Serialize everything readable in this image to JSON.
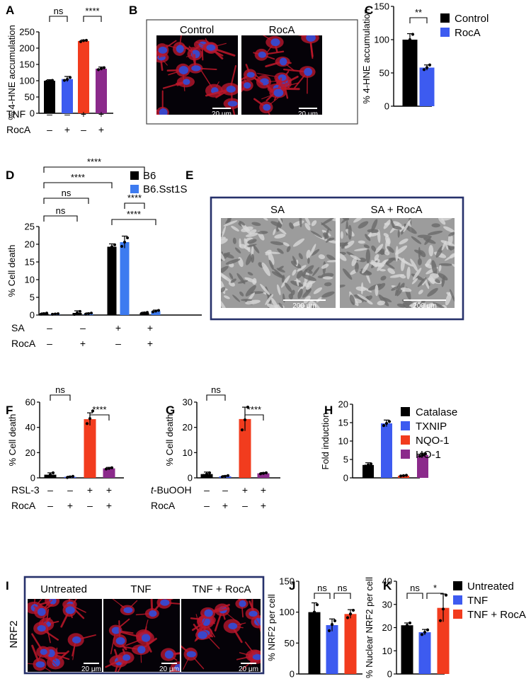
{
  "panel_labels": [
    "A",
    "B",
    "C",
    "D",
    "E",
    "F",
    "G",
    "H",
    "I",
    "J",
    "K"
  ],
  "legends": {
    "C": [
      {
        "label": "Control",
        "color": "#000000"
      },
      {
        "label": "RocA",
        "color": "#3d5bf0"
      }
    ],
    "D": [
      {
        "label": "B6",
        "color": "#000000"
      },
      {
        "label": "B6.Sst1S",
        "color": "#3d7bf0"
      }
    ],
    "H": [
      {
        "label": "Catalase",
        "color": "#000000"
      },
      {
        "label": "TXNIP",
        "color": "#3d5bf0"
      },
      {
        "label": "NQO-1",
        "color": "#f23c1e"
      },
      {
        "label": "HO-1",
        "color": "#8b2a8b"
      }
    ],
    "K": [
      {
        "label": "Untreated",
        "color": "#000000"
      },
      {
        "label": "TNF",
        "color": "#3d5bf0"
      },
      {
        "label": "TNF + RocA",
        "color": "#f23c1e"
      }
    ]
  },
  "conditions": {
    "A": [
      {
        "label": "TNF",
        "signs": [
          "–",
          "–",
          "+",
          "+"
        ]
      },
      {
        "label": "RocA",
        "signs": [
          "–",
          "+",
          "–",
          "+"
        ]
      }
    ],
    "D": [
      {
        "label": "SA",
        "signs": [
          "–",
          "–",
          "+",
          "+"
        ]
      },
      {
        "label": "RocA",
        "signs": [
          "–",
          "+",
          "–",
          "+"
        ]
      }
    ],
    "F": [
      {
        "label": "RSL-3",
        "signs": [
          "–",
          "–",
          "+",
          "+"
        ]
      },
      {
        "label": "RocA",
        "signs": [
          "–",
          "+",
          "–",
          "+"
        ]
      }
    ],
    "G": [
      {
        "label": "t-BuOOH",
        "signs": [
          "–",
          "–",
          "+",
          "+"
        ]
      },
      {
        "label": "RocA",
        "signs": [
          "–",
          "+",
          "–",
          "+"
        ]
      }
    ]
  },
  "images": {
    "B": {
      "titles": [
        "Control",
        "RocA"
      ],
      "scale_bar": "20 μm"
    },
    "E": {
      "titles": [
        "SA",
        "SA + RocA"
      ],
      "scale_bar": "200 μm"
    },
    "I": {
      "titles": [
        "Untreated",
        "TNF",
        "TNF + RocA"
      ],
      "scale_bar": "20 μm",
      "row_label": "NRF2"
    }
  },
  "colors": {
    "black": "#000000",
    "blue": "#3d5bf0",
    "red": "#f23c1e",
    "purple": "#8b2a8b",
    "frame": "#26316b"
  },
  "chart_data": [
    {
      "panel": "A",
      "type": "bar",
      "ylabel": "% 4-HNE accumulation",
      "ylim": [
        0,
        250
      ],
      "yticks": [
        0,
        50,
        100,
        150,
        200,
        250
      ],
      "values": [
        100,
        105,
        222,
        137
      ],
      "errors": [
        3,
        8,
        3,
        5
      ],
      "colors": [
        "#000000",
        "#3d5bf0",
        "#f23c1e",
        "#8b2a8b"
      ],
      "points": [
        [
          98,
          100,
          101
        ],
        [
          101,
          104,
          110
        ],
        [
          220,
          223,
          224
        ],
        [
          134,
          137,
          140
        ]
      ],
      "significance": [
        {
          "from": 0,
          "to": 1,
          "label": "ns"
        },
        {
          "from": 2,
          "to": 3,
          "label": "****"
        }
      ]
    },
    {
      "panel": "C",
      "type": "bar",
      "ylabel": "% 4-HNE accumulation",
      "ylim": [
        0,
        150
      ],
      "yticks": [
        0,
        50,
        100,
        150
      ],
      "values": [
        100,
        58
      ],
      "errors": [
        9,
        4
      ],
      "colors": [
        "#000000",
        "#3d5bf0"
      ],
      "points": [
        [
          92,
          100,
          108
        ],
        [
          55,
          58,
          62
        ]
      ],
      "significance": [
        {
          "from": 0,
          "to": 1,
          "label": "**"
        }
      ]
    },
    {
      "panel": "D",
      "type": "bar",
      "ylabel": "% Cell death",
      "ylim": [
        0,
        25
      ],
      "yticks": [
        0,
        5,
        10,
        15,
        20,
        25
      ],
      "groups": 4,
      "series": [
        {
          "name": "B6",
          "color": "#000000",
          "values": [
            0.4,
            0.6,
            19.3,
            0.6
          ],
          "errors": [
            0.2,
            0.6,
            0.8,
            0.2
          ]
        },
        {
          "name": "B6.Sst1S",
          "color": "#3d7bf0",
          "values": [
            0.3,
            0.4,
            20.6,
            1.1
          ],
          "errors": [
            0.1,
            0.2,
            1.7,
            0.3
          ]
        }
      ],
      "significance": [
        {
          "from": 0,
          "to": 2,
          "label": "ns"
        },
        {
          "from": 0,
          "to": 3,
          "label": "ns"
        },
        {
          "from": 0,
          "to": 4,
          "label": "****"
        },
        {
          "from": 0,
          "to": 5,
          "label": "****"
        },
        {
          "from": 4,
          "to": 6,
          "label": "****"
        },
        {
          "from": 5,
          "to": 7,
          "label": "****"
        }
      ]
    },
    {
      "panel": "F",
      "type": "bar",
      "ylabel": "% Cell death",
      "ylim": [
        0,
        60
      ],
      "yticks": [
        0,
        20,
        40,
        60
      ],
      "values": [
        2.5,
        0.8,
        46.5,
        7.5
      ],
      "errors": [
        1.5,
        0.5,
        5,
        0.8
      ],
      "colors": [
        "#000000",
        "#3d5bf0",
        "#f23c1e",
        "#8b2a8b"
      ],
      "points": [
        [
          1,
          2.5,
          4
        ],
        [
          0.3,
          0.8,
          1.2
        ],
        [
          43,
          47,
          53
        ],
        [
          7,
          7.5,
          8
        ]
      ],
      "significance": [
        {
          "from": 0,
          "to": 1,
          "label": "ns"
        },
        {
          "from": 2,
          "to": 3,
          "label": "****"
        }
      ]
    },
    {
      "panel": "G",
      "type": "bar",
      "ylabel": "% Cell death",
      "ylim": [
        0,
        30
      ],
      "yticks": [
        0,
        10,
        20,
        30
      ],
      "values": [
        1.5,
        0.6,
        23.3,
        1.8
      ],
      "errors": [
        0.8,
        0.3,
        4.7,
        0.3
      ],
      "colors": [
        "#000000",
        "#3d5bf0",
        "#f23c1e",
        "#8b2a8b"
      ],
      "points": [
        [
          1,
          1.5,
          2
        ],
        [
          0.4,
          0.6,
          0.9
        ],
        [
          19,
          23,
          28
        ],
        [
          1.6,
          1.8,
          2
        ]
      ],
      "significance": [
        {
          "from": 0,
          "to": 1,
          "label": "ns"
        },
        {
          "from": 2,
          "to": 3,
          "label": "****"
        }
      ]
    },
    {
      "panel": "H",
      "type": "bar",
      "ylabel": "Fold induction",
      "ylim": [
        0,
        20
      ],
      "yticks": [
        0,
        5,
        10,
        15,
        20
      ],
      "categories": [
        "Catalase",
        "TXNIP",
        "NQO-1",
        "HO-1"
      ],
      "values": [
        3.5,
        14.8,
        0.6,
        6.2
      ],
      "errors": [
        0.6,
        0.9,
        0.1,
        0.5
      ],
      "colors": [
        "#000000",
        "#3d5bf0",
        "#f23c1e",
        "#8b2a8b"
      ],
      "points": [
        [
          3.2,
          3.5,
          3.8
        ],
        [
          14.2,
          14.8,
          15.3
        ],
        [
          0.5,
          0.6,
          0.7
        ],
        [
          5.9,
          6.2,
          6.5
        ]
      ],
      "significance": []
    },
    {
      "panel": "J",
      "type": "bar",
      "ylabel": "% NRF2 per cell",
      "ylim": [
        0,
        150
      ],
      "yticks": [
        0,
        50,
        100,
        150
      ],
      "values": [
        100,
        79,
        97
      ],
      "errors": [
        15,
        10,
        7
      ],
      "colors": [
        "#000000",
        "#3d5bf0",
        "#f23c1e"
      ],
      "points": [
        [
          88,
          100,
          112
        ],
        [
          70,
          80,
          86
        ],
        [
          91,
          97,
          103
        ]
      ],
      "significance": [
        {
          "from": 0,
          "to": 1,
          "label": "ns"
        },
        {
          "from": 1,
          "to": 2,
          "label": "ns"
        }
      ]
    },
    {
      "panel": "K",
      "type": "bar",
      "ylabel": "% Nuclear NRF2 per cell",
      "ylim": [
        0,
        40
      ],
      "yticks": [
        0,
        10,
        20,
        30,
        40
      ],
      "categories": [
        "Untreated",
        "TNF",
        "TNF + RocA"
      ],
      "values": [
        21,
        18,
        28.5
      ],
      "errors": [
        1,
        1.2,
        6
      ],
      "colors": [
        "#000000",
        "#3d5bf0",
        "#f23c1e"
      ],
      "points": [
        [
          20,
          21,
          22
        ],
        [
          17,
          18,
          19
        ],
        [
          23,
          28,
          34
        ]
      ],
      "significance": [
        {
          "from": 0,
          "to": 1,
          "label": "ns"
        },
        {
          "from": 1,
          "to": 2,
          "label": "*"
        }
      ]
    }
  ]
}
